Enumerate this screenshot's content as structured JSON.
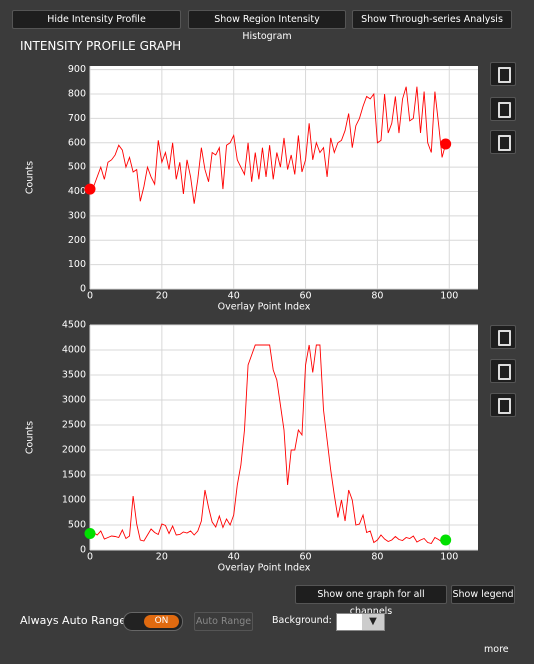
{
  "buttons": [
    "Hide Intensity Profile",
    "Show Region Intensity Histogram",
    "Show Through-series Analysis"
  ],
  "title": "INTENSITY PROFILE GRAPH",
  "chart_data": [
    {
      "type": "line",
      "xlabel": "Overlay Point Index",
      "ylabel": "Counts",
      "xlim": [
        0,
        108
      ],
      "xticks": [
        0,
        20,
        40,
        60,
        80,
        100
      ],
      "ylim": [
        0,
        915
      ],
      "yticks": [
        0,
        100,
        200,
        300,
        400,
        500,
        600,
        700,
        800,
        900
      ],
      "grid": true,
      "marker_color": "#ff0000",
      "x": [
        0,
        1,
        2,
        3,
        4,
        5,
        6,
        7,
        8,
        9,
        10,
        11,
        12,
        13,
        14,
        15,
        16,
        17,
        18,
        19,
        20,
        21,
        22,
        23,
        24,
        25,
        26,
        27,
        28,
        29,
        30,
        31,
        32,
        33,
        34,
        35,
        36,
        37,
        38,
        39,
        40,
        41,
        42,
        43,
        44,
        45,
        46,
        47,
        48,
        49,
        50,
        51,
        52,
        53,
        54,
        55,
        56,
        57,
        58,
        59,
        60,
        61,
        62,
        63,
        64,
        65,
        66,
        67,
        68,
        69,
        70,
        71,
        72,
        73,
        74,
        75,
        76,
        77,
        78,
        79,
        80,
        81,
        82,
        83,
        84,
        85,
        86,
        87,
        88,
        89,
        90,
        91,
        92,
        93,
        94,
        95,
        96,
        97,
        98,
        99
      ],
      "series": [
        {
          "color": "#ff0000",
          "values": [
            410,
            420,
            460,
            500,
            450,
            520,
            530,
            550,
            590,
            570,
            500,
            540,
            480,
            490,
            360,
            420,
            500,
            460,
            430,
            610,
            520,
            560,
            490,
            600,
            450,
            520,
            390,
            530,
            460,
            350,
            450,
            580,
            490,
            440,
            560,
            550,
            580,
            410,
            590,
            600,
            630,
            530,
            500,
            470,
            600,
            440,
            560,
            450,
            580,
            460,
            590,
            450,
            560,
            500,
            620,
            490,
            550,
            470,
            630,
            480,
            530,
            680,
            530,
            600,
            560,
            580,
            460,
            620,
            560,
            600,
            610,
            650,
            720,
            580,
            670,
            700,
            750,
            790,
            780,
            800,
            600,
            610,
            800,
            640,
            680,
            790,
            640,
            780,
            830,
            690,
            700,
            830,
            640,
            810,
            600,
            560,
            810,
            680,
            540,
            595
          ]
        }
      ]
    },
    {
      "type": "line",
      "xlabel": "Overlay Point Index",
      "ylabel": "Counts",
      "xlim": [
        0,
        108
      ],
      "xticks": [
        0,
        20,
        40,
        60,
        80,
        100
      ],
      "ylim": [
        0,
        4500
      ],
      "yticks": [
        0,
        500,
        1000,
        1500,
        2000,
        2500,
        3000,
        3500,
        4000,
        4500
      ],
      "grid": true,
      "marker_color": "#00e000",
      "x": [
        0,
        1,
        2,
        3,
        4,
        5,
        6,
        7,
        8,
        9,
        10,
        11,
        12,
        13,
        14,
        15,
        16,
        17,
        18,
        19,
        20,
        21,
        22,
        23,
        24,
        25,
        26,
        27,
        28,
        29,
        30,
        31,
        32,
        33,
        34,
        35,
        36,
        37,
        38,
        39,
        40,
        41,
        42,
        43,
        44,
        45,
        46,
        47,
        48,
        49,
        50,
        51,
        52,
        53,
        54,
        55,
        56,
        57,
        58,
        59,
        60,
        61,
        62,
        63,
        64,
        65,
        66,
        67,
        68,
        69,
        70,
        71,
        72,
        73,
        74,
        75,
        76,
        77,
        78,
        79,
        80,
        81,
        82,
        83,
        84,
        85,
        86,
        87,
        88,
        89,
        90,
        91,
        92,
        93,
        94,
        95,
        96,
        97,
        98,
        99
      ],
      "series": [
        {
          "color": "#ff0000",
          "values": [
            330,
            350,
            300,
            380,
            220,
            250,
            280,
            270,
            250,
            400,
            230,
            280,
            1080,
            520,
            200,
            180,
            300,
            420,
            350,
            310,
            520,
            490,
            330,
            480,
            300,
            310,
            360,
            340,
            380,
            300,
            380,
            580,
            1200,
            850,
            560,
            460,
            680,
            450,
            620,
            500,
            700,
            1300,
            1700,
            2400,
            3700,
            3900,
            4100,
            4100,
            4100,
            4100,
            4100,
            3600,
            3400,
            2900,
            2400,
            1300,
            2000,
            2000,
            2400,
            2300,
            3700,
            4100,
            3550,
            4100,
            4100,
            2800,
            2200,
            1600,
            1100,
            650,
            1000,
            580,
            1200,
            1000,
            500,
            520,
            700,
            350,
            380,
            150,
            200,
            300,
            220,
            170,
            200,
            270,
            210,
            190,
            250,
            230,
            280,
            160,
            200,
            230,
            150,
            130,
            250,
            210,
            160,
            200
          ]
        }
      ]
    }
  ],
  "bottom_buttons": [
    "Show one graph for all channels",
    "Show legend"
  ],
  "auto_range_label": "Always Auto Range",
  "toggle": "ON",
  "auto_range_button": "Auto Range",
  "background_label": "Background:",
  "more": "more"
}
